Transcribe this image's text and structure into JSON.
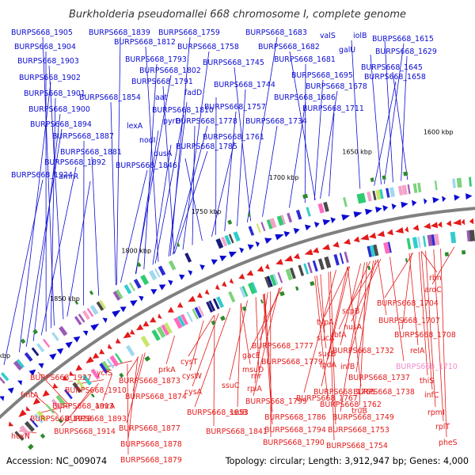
{
  "title": "Burkholderia pseudomallei 668 chromosome I, complete genome",
  "footer": {
    "accession": "Accession: NC_009074",
    "summary": "Topology: circular; Length: 3,912,947 bp; Genes: 4,000"
  },
  "colors": {
    "forward": "#0a0ad2",
    "reverse": "#e41a1a",
    "highlight": "#f08ccc",
    "backbone": "#808080"
  },
  "ticks": [
    "1600 kbp",
    "1650 kbp",
    "1700 kbp",
    "1750 kbp",
    "1800 kbp",
    "1850 kbp",
    "1900 kbp"
  ],
  "top_labels": [
    "BURPS668_1905",
    "BURPS668_1904",
    "BURPS668_1903",
    "BURPS668_1902",
    "BURPS668_1901",
    "BURPS668_1900",
    "BURPS668_1894",
    "BURPS668_1887",
    "BURPS668_1881",
    "BURPS668_1892",
    "amrR",
    "BURPS668_1924",
    "BURPS668_1839",
    "BURPS668_1812",
    "BURPS668_1793",
    "BURPS668_1802",
    "BURPS668_1791",
    "aat",
    "BURPS668_1854",
    "fadD",
    "BURPS668_1810",
    "lexA",
    "pyrD",
    "nodI",
    "dusA",
    "BURPS668_1846",
    "BURPS668_1759",
    "BURPS668_1758",
    "BURPS668_1745",
    "BURPS668_1744",
    "BURPS668_1757",
    "BURPS668_1778",
    "BURPS668_1761",
    "BURPS668_1785",
    "BURPS668_1683",
    "BURPS668_1682",
    "BURPS668_1681",
    "BURPS668_1695",
    "BURPS668_1678",
    "BURPS668_1686",
    "BURPS668_1711",
    "BURPS668_1734",
    "valS",
    "iolB",
    "galU",
    "BURPS668_1615",
    "BURPS668_1629",
    "BURPS668_1645",
    "BURPS668_1658"
  ],
  "bottom_labels": [
    "rbn",
    "aroC",
    "BURPS668_1704",
    "BURPS668_1707",
    "BURPS668_1708",
    "relA",
    "BURPS668_1710",
    "thiS",
    "infC",
    "rpmI",
    "rplT",
    "pheS",
    "scpB",
    "nusA",
    "rbfA",
    "BURPS668_1732",
    "infB",
    "BURPS668_1737",
    "BURPS668_1738",
    "truB",
    "typA",
    "sucA",
    "sucB",
    "lpdA",
    "BURPS668_1777",
    "BURPS668_1779",
    "BURPS668_1767",
    "BURPS668_1768",
    "BURPS668_1762",
    "BURPS668_1749",
    "BURPS668_1753",
    "BURPS668_1754",
    "BURPS668_1799",
    "BURPS668_1786",
    "BURPS668_1794",
    "BURPS668_1790",
    "gacE",
    "msuD",
    "ssuC",
    "rnr",
    "rplA",
    "ssuB",
    "BURPS668_1841",
    "BURPS668_1853",
    "cysT",
    "cysW",
    "cysA",
    "prkA",
    "BURPS668_1873",
    "BURPS668_1874",
    "BURPS668_1877",
    "BURPS668_1878",
    "BURPS668_1879",
    "ycfS",
    "BURPS668_1910",
    "BURPS668_1893",
    "amrA",
    "BURPS668_1913",
    "BURPS668_1914",
    "BURPS668_1927",
    "fmtA",
    "BURPS668_1928",
    "hoxN"
  ]
}
